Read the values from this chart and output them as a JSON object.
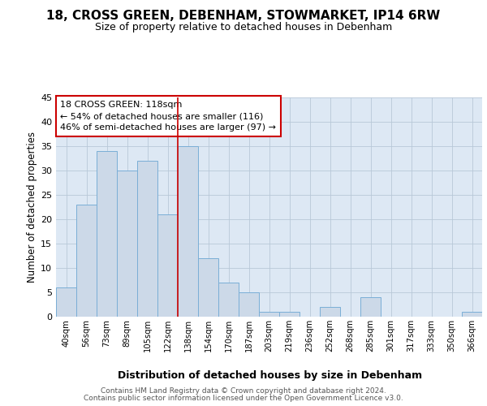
{
  "title": "18, CROSS GREEN, DEBENHAM, STOWMARKET, IP14 6RW",
  "subtitle": "Size of property relative to detached houses in Debenham",
  "xlabel": "Distribution of detached houses by size in Debenham",
  "ylabel": "Number of detached properties",
  "categories": [
    "40sqm",
    "56sqm",
    "73sqm",
    "89sqm",
    "105sqm",
    "122sqm",
    "138sqm",
    "154sqm",
    "170sqm",
    "187sqm",
    "203sqm",
    "219sqm",
    "236sqm",
    "252sqm",
    "268sqm",
    "285sqm",
    "301sqm",
    "317sqm",
    "333sqm",
    "350sqm",
    "366sqm"
  ],
  "values": [
    6,
    23,
    34,
    30,
    32,
    21,
    35,
    12,
    7,
    5,
    1,
    1,
    0,
    2,
    0,
    4,
    0,
    0,
    0,
    0,
    1
  ],
  "bar_color": "#ccd9e8",
  "bar_edge_color": "#7aaed6",
  "vline_x": 5.5,
  "vline_color": "#cc0000",
  "annotation_title": "18 CROSS GREEN: 118sqm",
  "annotation_line2": "← 54% of detached houses are smaller (116)",
  "annotation_line3": "46% of semi-detached houses are larger (97) →",
  "annotation_box_color": "#cc0000",
  "ylim": [
    0,
    45
  ],
  "yticks": [
    0,
    5,
    10,
    15,
    20,
    25,
    30,
    35,
    40,
    45
  ],
  "footer1": "Contains HM Land Registry data © Crown copyright and database right 2024.",
  "footer2": "Contains public sector information licensed under the Open Government Licence v3.0.",
  "bg_color": "#dde8f4",
  "fig_bg_color": "#ffffff"
}
